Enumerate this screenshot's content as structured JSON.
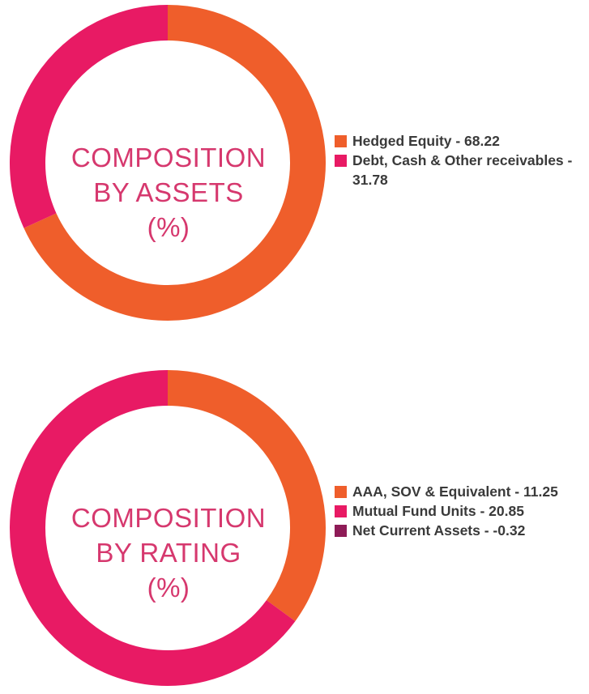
{
  "chart_data": [
    {
      "type": "pie",
      "donut": true,
      "center_label": [
        "COMPOSITION",
        "BY ASSETS",
        "(%)"
      ],
      "series": [
        {
          "name": "Hedged Equity - 68.22",
          "value": 68.22,
          "color": "#ef5e2b"
        },
        {
          "name": "Debt, Cash & Other receivables - 31.78",
          "value": 31.78,
          "color": "#e81a64"
        }
      ],
      "legend_placement": "right"
    },
    {
      "type": "pie",
      "donut": true,
      "center_label": [
        "COMPOSITION",
        "BY RATING",
        "(%)"
      ],
      "series": [
        {
          "name": "AAA, SOV & Equivalent - 11.25",
          "value": 11.25,
          "color": "#ef5e2b"
        },
        {
          "name": "Mutual Fund Units - 20.85",
          "value": 20.85,
          "color": "#e81a64"
        },
        {
          "name": "Net Current Assets - -0.32",
          "value": -0.32,
          "color": "#8e1b57"
        }
      ],
      "legend_placement": "right"
    }
  ]
}
